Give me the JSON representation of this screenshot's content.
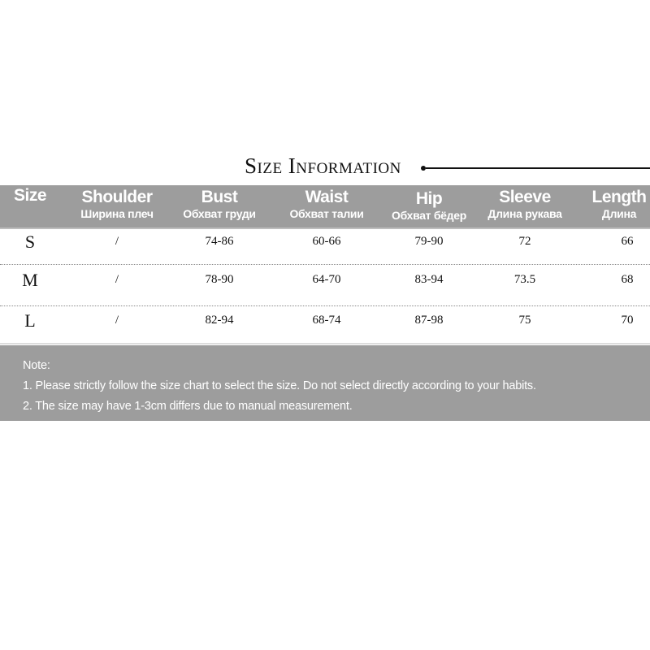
{
  "title": "Size Information",
  "columns": [
    {
      "en": "Size",
      "ru": ""
    },
    {
      "en": "Shoulder",
      "ru": "Ширина плеч"
    },
    {
      "en": "Bust",
      "ru": "Обхват груди"
    },
    {
      "en": "Waist",
      "ru": "Обхват талии"
    },
    {
      "en": "Hip",
      "ru": "Обхват бёдер"
    },
    {
      "en": "Sleeve",
      "ru": "Длина рукава"
    },
    {
      "en": "Length",
      "ru": "Длина"
    }
  ],
  "rows": [
    [
      "S",
      "/",
      "74-86",
      "60-66",
      "79-90",
      "72",
      "66"
    ],
    [
      "M",
      "/",
      "78-90",
      "64-70",
      "83-94",
      "73.5",
      "68"
    ],
    [
      "L",
      "/",
      "82-94",
      "68-74",
      "87-98",
      "75",
      "70"
    ]
  ],
  "note": {
    "heading": "Note:",
    "lines": [
      "1. Please strictly follow the size chart to select the size. Do not select directly according to your habits.",
      "2. The size may have 1-3cm differs due to manual measurement."
    ]
  },
  "colors": {
    "band": "#9d9d9d",
    "text": "#111111",
    "header_text": "#ffffff"
  }
}
